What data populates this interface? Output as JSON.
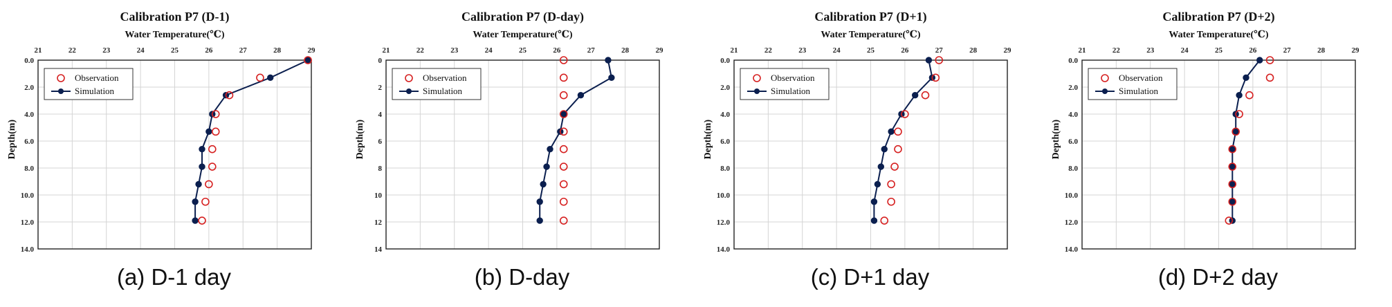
{
  "colors": {
    "observation": "#d62020",
    "simulation": "#0b1f4f",
    "grid": "#d4d4d4"
  },
  "captions": [
    "(a) D-1 day",
    "(b) D-day",
    "(c) D+1 day",
    "(d) D+2 day"
  ],
  "chart_data": [
    {
      "type": "scatter",
      "title": "Calibration P7 (D-1)",
      "xlabel": "Water Temperature(℃)",
      "ylabel": "Depth(m)",
      "xlim": [
        21,
        29
      ],
      "ylim": [
        0,
        14
      ],
      "y_inverted": true,
      "x_axis_position": "top",
      "x_ticks": [
        "21",
        "22",
        "23",
        "24",
        "25",
        "26",
        "27",
        "28",
        "29"
      ],
      "y_ticks": [
        "0.0",
        "2.0",
        "4.0",
        "6.0",
        "8.0",
        "10.0",
        "12.0",
        "14.0"
      ],
      "grid": true,
      "legend": "top-left",
      "series": [
        {
          "name": "Observation",
          "marker": "open-circle",
          "x": [
            28.9,
            27.5,
            26.6,
            26.2,
            26.2,
            26.1,
            26.1,
            26.0,
            25.9,
            25.8
          ],
          "y": [
            0.0,
            1.3,
            2.6,
            4.0,
            5.3,
            6.6,
            7.9,
            9.2,
            10.5,
            11.9
          ]
        },
        {
          "name": "Simulation",
          "marker": "filled-circle-line",
          "x": [
            28.9,
            27.8,
            26.5,
            26.1,
            26.0,
            25.8,
            25.8,
            25.7,
            25.6,
            25.6
          ],
          "y": [
            0.0,
            1.3,
            2.6,
            4.0,
            5.3,
            6.6,
            7.9,
            9.2,
            10.5,
            11.9
          ]
        }
      ]
    },
    {
      "type": "scatter",
      "title": "Calibration P7 (D-day)",
      "xlabel": "Water Temperature(℃)",
      "ylabel": "Depth(m)",
      "xlim": [
        21,
        29
      ],
      "ylim": [
        0,
        14
      ],
      "y_inverted": true,
      "x_axis_position": "top",
      "x_ticks": [
        "21",
        "22",
        "23",
        "24",
        "25",
        "26",
        "27",
        "28",
        "29"
      ],
      "y_ticks": [
        "0",
        "2",
        "4",
        "6",
        "8",
        "10",
        "12",
        "14"
      ],
      "grid": true,
      "legend": "top-left",
      "series": [
        {
          "name": "Observation",
          "marker": "open-circle",
          "x": [
            26.2,
            26.2,
            26.2,
            26.2,
            26.2,
            26.2,
            26.2,
            26.2,
            26.2,
            26.2
          ],
          "y": [
            0.0,
            1.3,
            2.6,
            4.0,
            5.3,
            6.6,
            7.9,
            9.2,
            10.5,
            11.9
          ]
        },
        {
          "name": "Simulation",
          "marker": "filled-circle-line",
          "x": [
            27.5,
            27.6,
            26.7,
            26.2,
            26.1,
            25.8,
            25.7,
            25.6,
            25.5,
            25.5
          ],
          "y": [
            0.0,
            1.3,
            2.6,
            4.0,
            5.3,
            6.6,
            7.9,
            9.2,
            10.5,
            11.9
          ]
        }
      ]
    },
    {
      "type": "scatter",
      "title": "Calibration P7 (D+1)",
      "xlabel": "Water Temperature(℃)",
      "ylabel": "Depth(m)",
      "xlim": [
        21,
        29
      ],
      "ylim": [
        0,
        14
      ],
      "y_inverted": true,
      "x_axis_position": "top",
      "x_ticks": [
        "21",
        "22",
        "23",
        "24",
        "25",
        "26",
        "27",
        "28",
        "29"
      ],
      "y_ticks": [
        "0.0",
        "2.0",
        "4.0",
        "6.0",
        "8.0",
        "10.0",
        "12.0",
        "14.0"
      ],
      "grid": true,
      "legend": "top-left",
      "series": [
        {
          "name": "Observation",
          "marker": "open-circle",
          "x": [
            27.0,
            26.9,
            26.6,
            26.0,
            25.8,
            25.8,
            25.7,
            25.6,
            25.6,
            25.4
          ],
          "y": [
            0.0,
            1.3,
            2.6,
            4.0,
            5.3,
            6.6,
            7.9,
            9.2,
            10.5,
            11.9
          ]
        },
        {
          "name": "Simulation",
          "marker": "filled-circle-line",
          "x": [
            26.7,
            26.8,
            26.3,
            25.9,
            25.6,
            25.4,
            25.3,
            25.2,
            25.1,
            25.1
          ],
          "y": [
            0.0,
            1.3,
            2.6,
            4.0,
            5.3,
            6.6,
            7.9,
            9.2,
            10.5,
            11.9
          ]
        }
      ]
    },
    {
      "type": "scatter",
      "title": "Calibration P7 (D+2)",
      "xlabel": "Water Temperature(℃)",
      "ylabel": "Depth(m)",
      "xlim": [
        21,
        29
      ],
      "ylim": [
        0,
        14
      ],
      "y_inverted": true,
      "x_axis_position": "top",
      "x_ticks": [
        "21",
        "22",
        "23",
        "24",
        "25",
        "26",
        "27",
        "28",
        "29"
      ],
      "y_ticks": [
        "0.0",
        "2.0",
        "4.0",
        "6.0",
        "8.0",
        "10.0",
        "12.0",
        "14.0"
      ],
      "grid": true,
      "legend": "top-left",
      "series": [
        {
          "name": "Observation",
          "marker": "open-circle",
          "x": [
            26.5,
            26.5,
            25.9,
            25.6,
            25.5,
            25.4,
            25.4,
            25.4,
            25.4,
            25.3
          ],
          "y": [
            0.0,
            1.3,
            2.6,
            4.0,
            5.3,
            6.6,
            7.9,
            9.2,
            10.5,
            11.9
          ]
        },
        {
          "name": "Simulation",
          "marker": "filled-circle-line",
          "x": [
            26.2,
            25.8,
            25.6,
            25.5,
            25.5,
            25.4,
            25.4,
            25.4,
            25.4,
            25.4
          ],
          "y": [
            0.0,
            1.3,
            2.6,
            4.0,
            5.3,
            6.6,
            7.9,
            9.2,
            10.5,
            11.9
          ]
        }
      ]
    }
  ]
}
